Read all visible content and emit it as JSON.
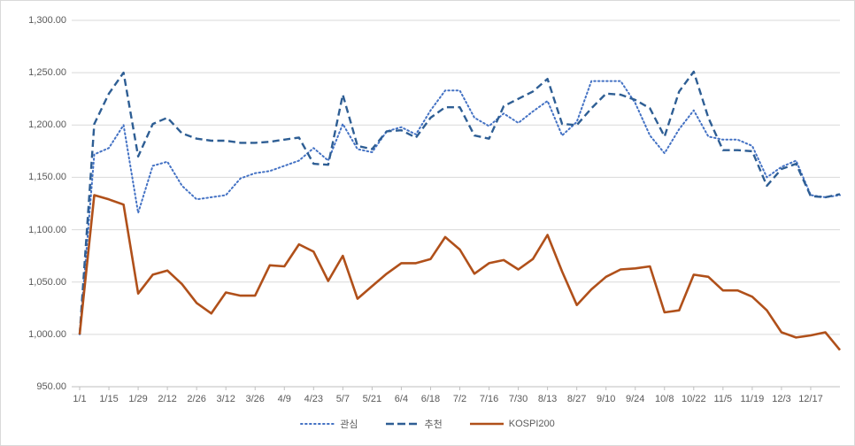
{
  "chart": {
    "background": "#FFFFFF",
    "border_color": "#D9D9D9",
    "gridline_color": "#D9D9D9",
    "axis_line_color": "#BFBFBF",
    "tick_label_color": "#595959",
    "y_axis": {
      "min": 950,
      "max": 1300,
      "step": 50,
      "tick_labels": [
        "1,300.00",
        "1,250.00",
        "1,200.00",
        "1,150.00",
        "1,100.00",
        "1,050.00",
        "1,000.00",
        "950.00"
      ]
    },
    "x_axis": {
      "tick_labels": [
        "1/1",
        "1/15",
        "1/29",
        "2/12",
        "2/26",
        "3/12",
        "3/26",
        "4/9",
        "4/23",
        "5/7",
        "5/21",
        "6/4",
        "6/18",
        "7/2",
        "7/16",
        "7/30",
        "8/13",
        "8/27",
        "9/10",
        "9/24",
        "10/8",
        "10/22",
        "11/5",
        "11/19",
        "12/3",
        "12/17"
      ]
    },
    "legend": {
      "position": "bottom",
      "items": [
        {
          "label": "관심",
          "style": "dotted",
          "color": "#4472C4"
        },
        {
          "label": "추천",
          "style": "dashed",
          "color": "#2E5E94"
        },
        {
          "label": "KOSPI200",
          "style": "solid",
          "color": "#B0501A"
        }
      ]
    }
  },
  "chart_data": {
    "type": "line",
    "title": "",
    "xlabel": "",
    "ylabel": "",
    "ylim": [
      950,
      1300
    ],
    "grid": true,
    "legend_position": "bottom",
    "x": [
      "1/1",
      "1/8",
      "1/15",
      "1/22",
      "1/29",
      "2/5",
      "2/12",
      "2/19",
      "2/26",
      "3/5",
      "3/12",
      "3/19",
      "3/26",
      "4/2",
      "4/9",
      "4/16",
      "4/23",
      "4/30",
      "5/7",
      "5/14",
      "5/21",
      "5/28",
      "6/4",
      "6/11",
      "6/18",
      "6/25",
      "7/2",
      "7/9",
      "7/16",
      "7/23",
      "7/30",
      "8/6",
      "8/13",
      "8/20",
      "8/27",
      "9/3",
      "9/10",
      "9/17",
      "9/24",
      "10/1",
      "10/8",
      "10/15",
      "10/22",
      "10/29",
      "11/5",
      "11/12",
      "11/19",
      "11/26",
      "12/3",
      "12/10",
      "12/17",
      "12/24",
      "12/31"
    ],
    "series": [
      {
        "name": "관심",
        "style": "dotted",
        "color": "#4472C4",
        "width": 2,
        "values": [
          1000,
          1172,
          1178,
          1200,
          1116,
          1161,
          1165,
          1142,
          1129,
          1131,
          1133,
          1149,
          1154,
          1156,
          1161,
          1166,
          1178,
          1166,
          1201,
          1177,
          1174,
          1194,
          1198,
          1191,
          1214,
          1233,
          1233,
          1207,
          1199,
          1211,
          1202,
          1213,
          1223,
          1190,
          1203,
          1242,
          1242,
          1242,
          1221,
          1190,
          1173,
          1196,
          1214,
          1189,
          1186,
          1186,
          1180,
          1150,
          1160,
          1166,
          1133,
          1131,
          1133
        ]
      },
      {
        "name": "추천",
        "style": "dashed",
        "color": "#2E5E94",
        "width": 2.4,
        "values": [
          1000,
          1201,
          1230,
          1250,
          1170,
          1201,
          1207,
          1192,
          1187,
          1185,
          1185,
          1183,
          1183,
          1184,
          1186,
          1188,
          1163,
          1162,
          1229,
          1180,
          1177,
          1194,
          1195,
          1188,
          1207,
          1217,
          1217,
          1190,
          1187,
          1218,
          1225,
          1232,
          1244,
          1201,
          1200,
          1216,
          1230,
          1229,
          1224,
          1216,
          1189,
          1232,
          1251,
          1207,
          1176,
          1176,
          1175,
          1142,
          1158,
          1163,
          1132,
          1131,
          1134
        ]
      },
      {
        "name": "KOSPI200",
        "style": "solid",
        "color": "#B0501A",
        "width": 2.6,
        "values": [
          1000,
          1133,
          1129,
          1124,
          1039,
          1057,
          1061,
          1048,
          1030,
          1020,
          1040,
          1037,
          1037,
          1066,
          1065,
          1086,
          1079,
          1051,
          1075,
          1034,
          1046,
          1058,
          1068,
          1068,
          1072,
          1093,
          1081,
          1058,
          1068,
          1071,
          1062,
          1072,
          1095,
          1060,
          1028,
          1043,
          1055,
          1062,
          1063,
          1065,
          1021,
          1023,
          1057,
          1055,
          1042,
          1042,
          1036,
          1023,
          1002,
          997,
          999,
          1002,
          985
        ]
      }
    ]
  }
}
